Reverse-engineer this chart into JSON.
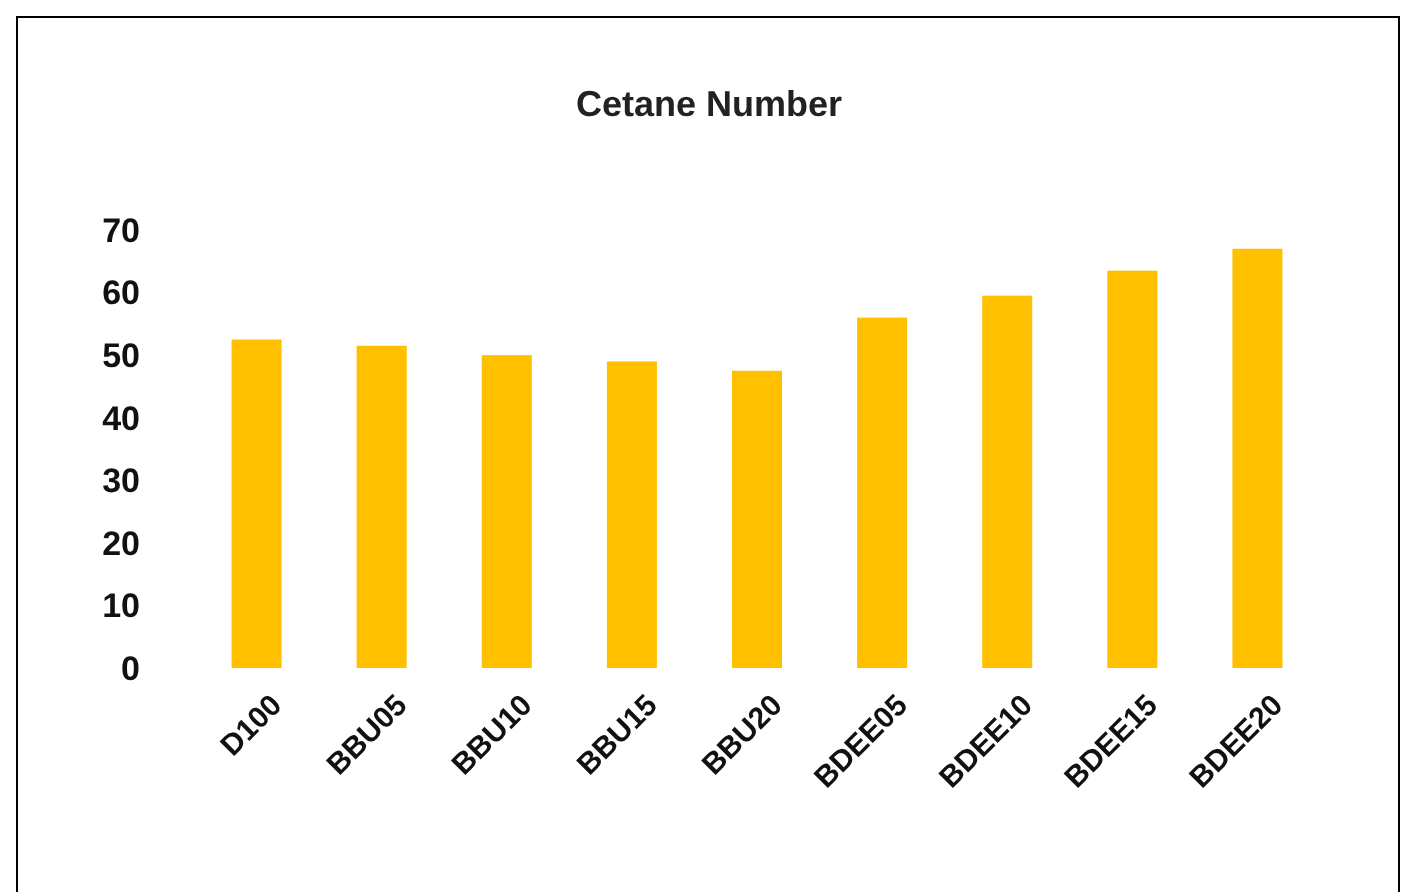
{
  "chart_data": {
    "type": "bar",
    "title": "Cetane Number",
    "categories": [
      "D100",
      "BBU05",
      "BBU10",
      "BBU15",
      "BBU20",
      "BDEE05",
      "BDEE10",
      "BDEE15",
      "BDEE20"
    ],
    "values": [
      52.5,
      51.5,
      50,
      49,
      47.5,
      56,
      59.5,
      63.5,
      67
    ],
    "color": "#ffc000",
    "ylim": [
      0,
      70
    ],
    "yticks": [
      0,
      10,
      20,
      30,
      40,
      50,
      60,
      70
    ]
  }
}
